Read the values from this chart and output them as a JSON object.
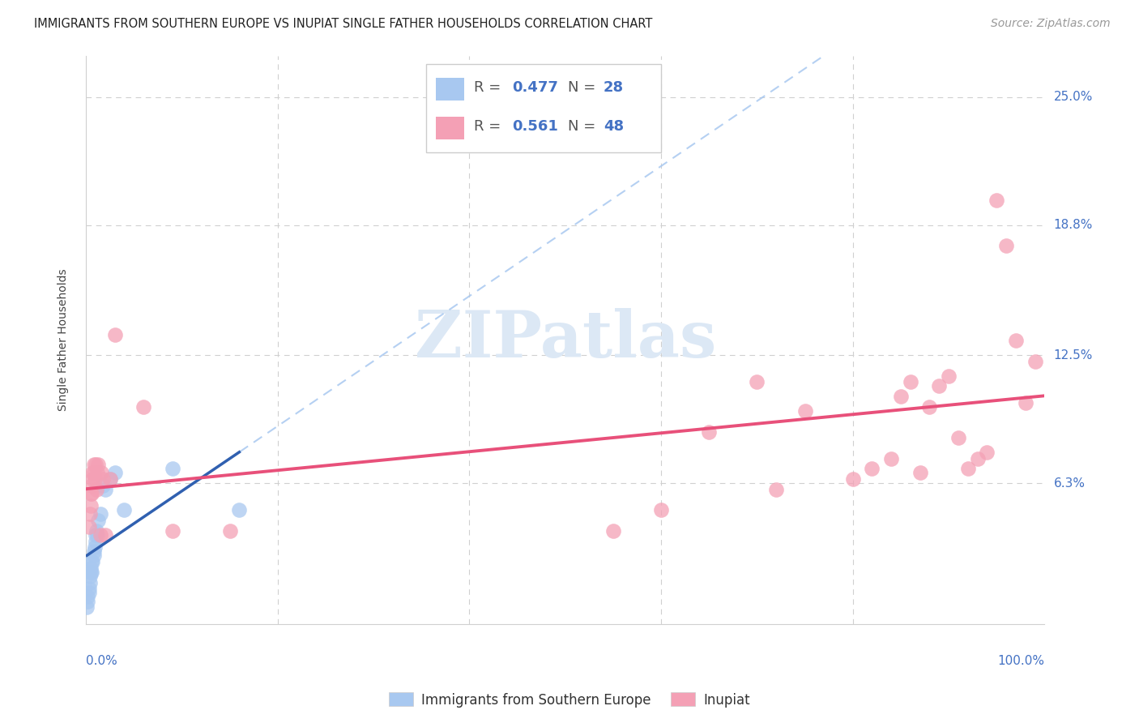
{
  "title": "IMMIGRANTS FROM SOUTHERN EUROPE VS INUPIAT SINGLE FATHER HOUSEHOLDS CORRELATION CHART",
  "source": "Source: ZipAtlas.com",
  "ylabel": "Single Father Households",
  "ytick_values": [
    0.063,
    0.125,
    0.188,
    0.25
  ],
  "ytick_labels": [
    "6.3%",
    "12.5%",
    "18.8%",
    "25.0%"
  ],
  "xlim": [
    0.0,
    1.0
  ],
  "ylim": [
    -0.005,
    0.27
  ],
  "blue_color": "#a8c8f0",
  "pink_color": "#f4a0b5",
  "blue_line_color": "#3060b0",
  "pink_line_color": "#e8507a",
  "blue_dashed_color": "#a8c8f0",
  "watermark_color": "#dce8f5",
  "title_fontsize": 10.5,
  "source_fontsize": 10,
  "ylabel_fontsize": 10,
  "tick_fontsize": 11,
  "legend_fontsize": 13,
  "blue_x": [
    0.001,
    0.002,
    0.002,
    0.003,
    0.003,
    0.004,
    0.004,
    0.005,
    0.005,
    0.006,
    0.006,
    0.007,
    0.008,
    0.008,
    0.009,
    0.01,
    0.01,
    0.011,
    0.012,
    0.013,
    0.015,
    0.018,
    0.02,
    0.025,
    0.03,
    0.04,
    0.09,
    0.16
  ],
  "blue_y": [
    0.003,
    0.006,
    0.008,
    0.01,
    0.012,
    0.015,
    0.018,
    0.02,
    0.022,
    0.02,
    0.025,
    0.025,
    0.028,
    0.03,
    0.032,
    0.035,
    0.038,
    0.04,
    0.038,
    0.045,
    0.048,
    0.062,
    0.06,
    0.065,
    0.068,
    0.05,
    0.07,
    0.05
  ],
  "pink_x": [
    0.003,
    0.004,
    0.005,
    0.005,
    0.006,
    0.006,
    0.007,
    0.007,
    0.008,
    0.008,
    0.009,
    0.01,
    0.011,
    0.012,
    0.013,
    0.015,
    0.016,
    0.018,
    0.02,
    0.025,
    0.03,
    0.06,
    0.09,
    0.15,
    0.55,
    0.6,
    0.65,
    0.7,
    0.72,
    0.75,
    0.8,
    0.82,
    0.84,
    0.85,
    0.86,
    0.87,
    0.88,
    0.89,
    0.9,
    0.91,
    0.92,
    0.93,
    0.94,
    0.95,
    0.96,
    0.97,
    0.98,
    0.99
  ],
  "pink_y": [
    0.042,
    0.048,
    0.052,
    0.058,
    0.058,
    0.062,
    0.065,
    0.068,
    0.068,
    0.072,
    0.065,
    0.072,
    0.06,
    0.068,
    0.072,
    0.038,
    0.068,
    0.065,
    0.038,
    0.065,
    0.135,
    0.1,
    0.04,
    0.04,
    0.04,
    0.05,
    0.088,
    0.112,
    0.06,
    0.098,
    0.065,
    0.07,
    0.075,
    0.105,
    0.112,
    0.068,
    0.1,
    0.11,
    0.115,
    0.085,
    0.07,
    0.075,
    0.078,
    0.2,
    0.178,
    0.132,
    0.102,
    0.122
  ]
}
